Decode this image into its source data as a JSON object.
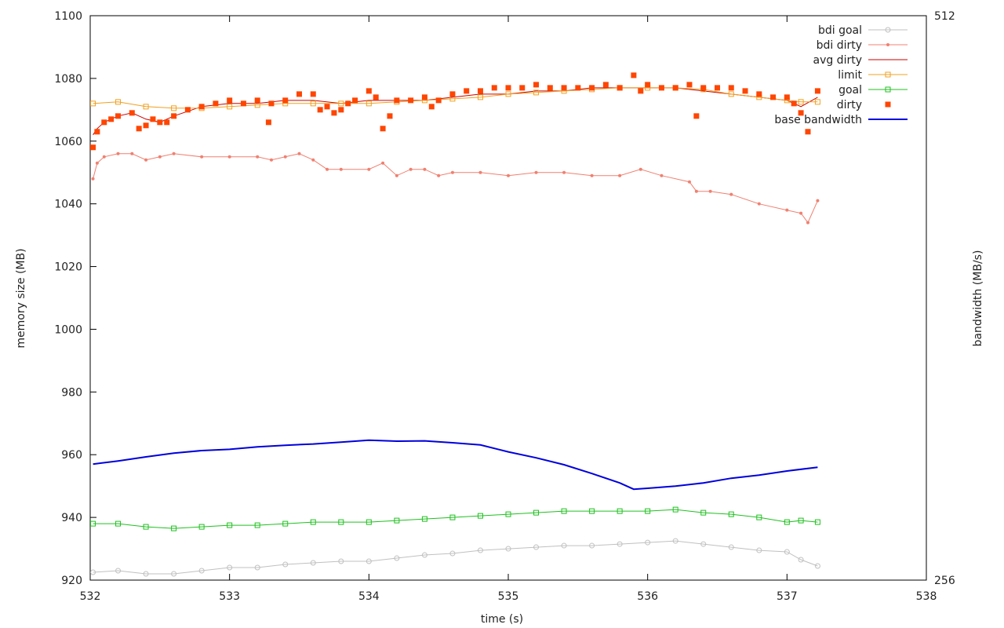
{
  "chart_data": {
    "type": "line",
    "xlabel": "time (s)",
    "ylabel": "memory size (MB)",
    "y2label": "bandwidth (MB/s)",
    "xlim": [
      532,
      538
    ],
    "ylim": [
      920,
      1100
    ],
    "y2lim": [
      256,
      512
    ],
    "xticks": [
      532,
      533,
      534,
      535,
      536,
      537,
      538
    ],
    "yticks": [
      920,
      940,
      960,
      980,
      1000,
      1020,
      1040,
      1060,
      1080,
      1100
    ],
    "y2ticks": [
      256,
      512
    ],
    "grid": false,
    "legend_position": "top-right",
    "series": [
      {
        "name": "bdi goal",
        "color": "#c0c0c0",
        "style": "line-circle",
        "axis": "y",
        "x": [
          532.02,
          532.2,
          532.4,
          532.6,
          532.8,
          533.0,
          533.2,
          533.4,
          533.6,
          533.8,
          534.0,
          534.2,
          534.4,
          534.6,
          534.8,
          535.0,
          535.2,
          535.4,
          535.6,
          535.8,
          536.0,
          536.2,
          536.4,
          536.6,
          536.8,
          537.0,
          537.1,
          537.22
        ],
        "values": [
          922.5,
          923.0,
          922.0,
          922.0,
          923.0,
          924.0,
          924.0,
          925.0,
          925.5,
          926.0,
          926.0,
          927.0,
          928.0,
          928.5,
          929.5,
          930.0,
          930.5,
          931.0,
          931.0,
          931.5,
          932.0,
          932.5,
          931.5,
          930.5,
          929.5,
          929.0,
          926.5,
          924.5
        ]
      },
      {
        "name": "bdi dirty",
        "color": "#f08070",
        "style": "line-dot",
        "axis": "y",
        "x": [
          532.02,
          532.05,
          532.1,
          532.2,
          532.3,
          532.4,
          532.5,
          532.6,
          532.8,
          533.0,
          533.2,
          533.3,
          533.4,
          533.5,
          533.6,
          533.7,
          533.8,
          534.0,
          534.1,
          534.2,
          534.3,
          534.4,
          534.5,
          534.6,
          534.8,
          535.0,
          535.2,
          535.4,
          535.6,
          535.8,
          535.95,
          536.1,
          536.3,
          536.35,
          536.45,
          536.6,
          536.8,
          537.0,
          537.1,
          537.15,
          537.22
        ],
        "values": [
          1048,
          1053,
          1055,
          1056,
          1056,
          1054,
          1055,
          1056,
          1055,
          1055,
          1055,
          1054,
          1055,
          1056,
          1054,
          1051,
          1051,
          1051,
          1053,
          1049,
          1051,
          1051,
          1049,
          1050,
          1050,
          1049,
          1050,
          1050,
          1049,
          1049,
          1051,
          1049,
          1047,
          1044,
          1044,
          1043,
          1040,
          1038,
          1037,
          1034,
          1041
        ]
      },
      {
        "name": "avg dirty",
        "color": "#cc0000",
        "style": "line",
        "axis": "y",
        "x": [
          532.02,
          532.05,
          532.1,
          532.2,
          532.3,
          532.4,
          532.5,
          532.6,
          532.8,
          533.0,
          533.2,
          533.4,
          533.6,
          533.8,
          534.0,
          534.2,
          534.4,
          534.6,
          534.8,
          535.0,
          535.2,
          535.4,
          535.6,
          535.8,
          536.0,
          536.2,
          536.4,
          536.6,
          536.8,
          537.0,
          537.1,
          537.22
        ],
        "values": [
          1062,
          1064,
          1066,
          1068,
          1069,
          1067,
          1066,
          1068,
          1071,
          1072,
          1072,
          1073,
          1073,
          1072,
          1073,
          1073,
          1073,
          1074,
          1075,
          1075,
          1076,
          1076,
          1077,
          1077,
          1077,
          1077,
          1076,
          1075,
          1074,
          1073,
          1071,
          1074
        ]
      },
      {
        "name": "limit",
        "color": "#f0a020",
        "style": "line-square",
        "axis": "y",
        "x": [
          532.02,
          532.2,
          532.4,
          532.6,
          532.8,
          533.0,
          533.2,
          533.4,
          533.6,
          533.8,
          534.0,
          534.2,
          534.4,
          534.6,
          534.8,
          535.0,
          535.2,
          535.4,
          535.6,
          535.8,
          536.0,
          536.2,
          536.4,
          536.6,
          536.8,
          537.0,
          537.1,
          537.22
        ],
        "values": [
          1072,
          1072.5,
          1071,
          1070.5,
          1070.5,
          1071,
          1071.5,
          1072,
          1072,
          1072,
          1072,
          1072.5,
          1073,
          1073.5,
          1074,
          1075,
          1075.5,
          1076,
          1076.5,
          1077,
          1077,
          1077,
          1076.5,
          1075,
          1074,
          1073,
          1072.5,
          1072.5
        ]
      },
      {
        "name": "goal",
        "color": "#20c020",
        "style": "line-square",
        "axis": "y",
        "x": [
          532.02,
          532.2,
          532.4,
          532.6,
          532.8,
          533.0,
          533.2,
          533.4,
          533.6,
          533.8,
          534.0,
          534.2,
          534.4,
          534.6,
          534.8,
          535.0,
          535.2,
          535.4,
          535.6,
          535.8,
          536.0,
          536.2,
          536.4,
          536.6,
          536.8,
          537.0,
          537.1,
          537.22
        ],
        "values": [
          938,
          938,
          937,
          936.5,
          937,
          937.5,
          937.5,
          938,
          938.5,
          938.5,
          938.5,
          939,
          939.5,
          940,
          940.5,
          941,
          941.5,
          942,
          942,
          942,
          942,
          942.5,
          941.5,
          941,
          940,
          938.5,
          939,
          938.5
        ]
      },
      {
        "name": "dirty",
        "color": "#ff4500",
        "style": "square",
        "axis": "y",
        "x": [
          532.02,
          532.05,
          532.1,
          532.15,
          532.2,
          532.3,
          532.35,
          532.4,
          532.45,
          532.5,
          532.55,
          532.6,
          532.7,
          532.8,
          532.9,
          533.0,
          533.1,
          533.2,
          533.28,
          533.3,
          533.4,
          533.5,
          533.6,
          533.65,
          533.7,
          533.75,
          533.8,
          533.85,
          533.9,
          534.0,
          534.05,
          534.1,
          534.15,
          534.2,
          534.3,
          534.4,
          534.45,
          534.5,
          534.6,
          534.7,
          534.8,
          534.9,
          535.0,
          535.1,
          535.2,
          535.3,
          535.4,
          535.5,
          535.6,
          535.7,
          535.8,
          535.9,
          535.95,
          536.0,
          536.1,
          536.2,
          536.3,
          536.35,
          536.4,
          536.5,
          536.6,
          536.7,
          536.8,
          536.9,
          537.0,
          537.05,
          537.1,
          537.15,
          537.22
        ],
        "values": [
          1058,
          1063,
          1066,
          1067,
          1068,
          1069,
          1064,
          1065,
          1067,
          1066,
          1066,
          1068,
          1070,
          1071,
          1072,
          1073,
          1072,
          1073,
          1066,
          1072,
          1073,
          1075,
          1075,
          1070,
          1071,
          1069,
          1070,
          1072,
          1073,
          1076,
          1074,
          1064,
          1068,
          1073,
          1073,
          1074,
          1071,
          1073,
          1075,
          1076,
          1076,
          1077,
          1077,
          1077,
          1078,
          1077,
          1077,
          1077,
          1077,
          1078,
          1077,
          1081,
          1076,
          1078,
          1077,
          1077,
          1078,
          1068,
          1077,
          1077,
          1077,
          1076,
          1075,
          1074,
          1074,
          1072,
          1069,
          1063,
          1076
        ]
      },
      {
        "name": "base bandwidth",
        "color": "#0000dd",
        "style": "thick-line",
        "axis": "y",
        "x": [
          532.02,
          532.2,
          532.4,
          532.6,
          532.8,
          533.0,
          533.2,
          533.4,
          533.6,
          533.8,
          534.0,
          534.2,
          534.4,
          534.6,
          534.8,
          535.0,
          535.2,
          535.4,
          535.6,
          535.8,
          535.9,
          536.0,
          536.2,
          536.4,
          536.6,
          536.8,
          537.0,
          537.22
        ],
        "values": [
          957,
          958,
          959.3,
          960.5,
          961.3,
          961.7,
          962.5,
          963.0,
          963.4,
          964.0,
          964.6,
          964.3,
          964.4,
          963.8,
          963.1,
          960.9,
          959.0,
          956.8,
          954.0,
          951.0,
          949.0,
          949.3,
          950.0,
          951.0,
          952.5,
          953.5,
          954.8,
          956.0
        ]
      }
    ]
  }
}
